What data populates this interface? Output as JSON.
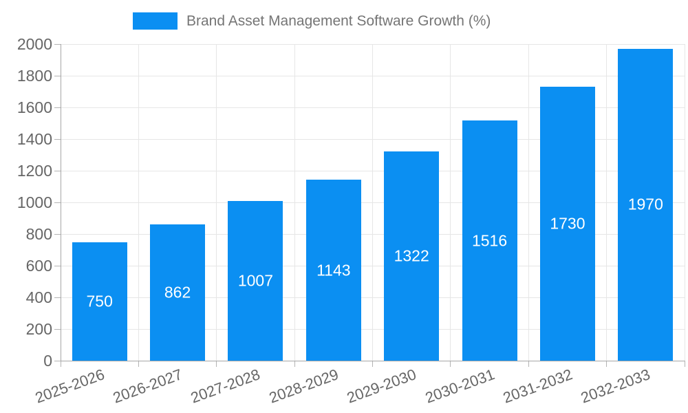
{
  "chart_data": {
    "type": "bar",
    "title": "",
    "legend_label": "Brand Asset Management Software Growth (%)",
    "legend_position": "top",
    "categories": [
      "2025-2026",
      "2026-2027",
      "2027-2028",
      "2028-2029",
      "2029-2030",
      "2030-2031",
      "2031-2032",
      "2032-2033"
    ],
    "values": [
      750,
      862,
      1007,
      1143,
      1322,
      1516,
      1730,
      1970
    ],
    "xlabel": "",
    "ylabel": "",
    "ylim": [
      0,
      2000
    ],
    "yticks": [
      0,
      200,
      400,
      600,
      800,
      1000,
      1200,
      1400,
      1600,
      1800,
      2000
    ],
    "grid": true,
    "colors": {
      "bar": "#0b8ff2",
      "bar_value_label": "#ffffff",
      "grid_line": "#e6e6e6",
      "axis_line": "#a6a6a6",
      "tick_label": "#666666",
      "legend_text": "#757575"
    }
  }
}
